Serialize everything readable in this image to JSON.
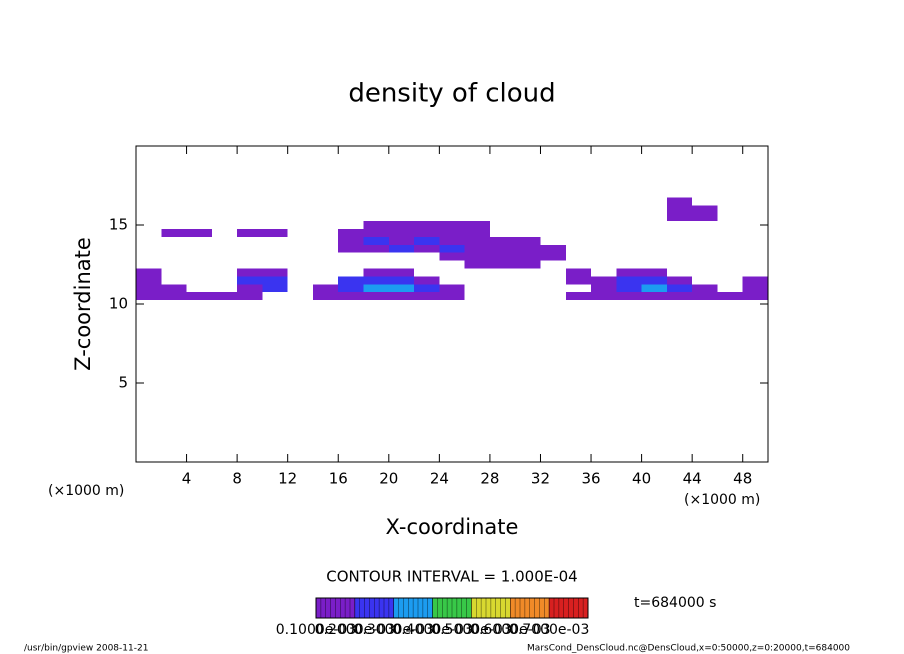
{
  "chart_data": {
    "type": "heatmap",
    "title": "density of cloud",
    "xlabel": "X-coordinate",
    "ylabel": "Z-coordinate",
    "x_unit_labels": [
      "(×1000 m)",
      "(×1000 m)"
    ],
    "contour_interval": "CONTOUR INTERVAL = 1.000E-04",
    "time_label": "t=684000 s",
    "footer_left": "/usr/bin/gpview   2008-11-21",
    "footer_right": "MarsCond_DensCloud.nc@DensCloud,x=0:50000,z=0:20000,t=684000",
    "xlim": [
      0,
      50
    ],
    "ylim": [
      0,
      20
    ],
    "xticks": [
      4,
      8,
      12,
      16,
      20,
      24,
      28,
      32,
      36,
      40,
      44,
      48
    ],
    "yticks": [
      5,
      10,
      15
    ],
    "x": [
      1,
      3,
      5,
      7,
      9,
      11,
      13,
      15,
      17,
      19,
      21,
      23,
      25,
      27,
      29,
      31,
      33,
      35,
      37,
      39,
      41,
      43,
      45,
      47,
      49
    ],
    "z": [
      10.5,
      11,
      11.5,
      12,
      12.5,
      13,
      13.5,
      14,
      14.5,
      15,
      15.5,
      16,
      16.5
    ],
    "values": [
      [
        0.00015,
        0.00015,
        0.00015,
        0.00015,
        0.00015,
        null,
        null,
        0.00015,
        0.00015,
        0.00015,
        0.00015,
        0.00015,
        0.00015,
        null,
        null,
        null,
        null,
        0.00015,
        0.00015,
        0.00015,
        0.00015,
        0.00015,
        0.00015,
        0.00015,
        0.00015
      ],
      [
        0.00015,
        0.00015,
        null,
        null,
        0.00015,
        0.00025,
        null,
        0.00015,
        0.00025,
        0.00032,
        0.00032,
        0.00025,
        0.00015,
        null,
        null,
        null,
        null,
        null,
        0.00015,
        0.00025,
        0.00032,
        0.00025,
        0.00015,
        null,
        0.00015
      ],
      [
        0.00015,
        null,
        null,
        null,
        0.00025,
        0.00025,
        null,
        null,
        0.00025,
        0.00025,
        0.00025,
        0.00015,
        null,
        null,
        null,
        null,
        null,
        0.00015,
        0.00015,
        0.00025,
        0.00025,
        0.00015,
        null,
        null,
        0.00015
      ],
      [
        0.00015,
        null,
        null,
        null,
        0.00015,
        0.00015,
        null,
        null,
        null,
        0.00015,
        0.00015,
        null,
        null,
        null,
        null,
        null,
        null,
        0.00015,
        null,
        0.00015,
        0.00015,
        null,
        null,
        null,
        null
      ],
      [
        null,
        null,
        null,
        null,
        null,
        null,
        null,
        null,
        null,
        null,
        null,
        null,
        null,
        0.00015,
        0.00015,
        0.00015,
        null,
        null,
        null,
        null,
        null,
        null,
        null,
        null,
        null
      ],
      [
        null,
        null,
        null,
        null,
        null,
        null,
        null,
        null,
        null,
        null,
        null,
        null,
        0.00015,
        0.00015,
        0.00015,
        0.00015,
        0.00015,
        null,
        null,
        null,
        null,
        null,
        null,
        null,
        null
      ],
      [
        null,
        null,
        null,
        null,
        null,
        null,
        null,
        null,
        0.00015,
        0.00015,
        0.00025,
        0.00015,
        0.00025,
        0.00015,
        0.00015,
        0.00015,
        0.00015,
        null,
        null,
        null,
        null,
        null,
        null,
        null,
        null
      ],
      [
        null,
        null,
        null,
        null,
        null,
        null,
        null,
        null,
        0.00015,
        0.00025,
        0.00015,
        0.00025,
        0.00015,
        0.00015,
        0.00015,
        0.00015,
        null,
        null,
        null,
        null,
        null,
        null,
        null,
        null,
        null
      ],
      [
        null,
        0.00015,
        0.00015,
        null,
        0.00015,
        0.00015,
        null,
        null,
        0.00015,
        0.00015,
        0.00015,
        0.00015,
        0.00015,
        0.00015,
        null,
        null,
        null,
        null,
        null,
        null,
        null,
        null,
        null,
        null,
        null
      ],
      [
        null,
        null,
        null,
        null,
        null,
        null,
        null,
        null,
        null,
        0.00015,
        0.00015,
        0.00015,
        0.00015,
        0.00015,
        null,
        null,
        null,
        null,
        null,
        null,
        null,
        null,
        null,
        null,
        null
      ],
      [
        null,
        null,
        null,
        null,
        null,
        null,
        null,
        null,
        null,
        null,
        null,
        null,
        null,
        null,
        null,
        null,
        null,
        null,
        null,
        null,
        null,
        0.00015,
        0.00015,
        null,
        null
      ],
      [
        null,
        null,
        null,
        null,
        null,
        null,
        null,
        null,
        null,
        null,
        null,
        null,
        null,
        null,
        null,
        null,
        null,
        null,
        null,
        null,
        null,
        0.00015,
        0.00015,
        null,
        null
      ],
      [
        null,
        null,
        null,
        null,
        null,
        null,
        null,
        null,
        null,
        null,
        null,
        null,
        null,
        null,
        null,
        null,
        null,
        null,
        null,
        null,
        null,
        0.00015,
        null,
        null,
        null
      ]
    ],
    "levels": [
      {
        "value": 0.0001,
        "label": "0.1000e-03"
      },
      {
        "value": 0.0002,
        "label": "0.2000e-03"
      },
      {
        "value": 0.0003,
        "label": "0.3000e-03"
      },
      {
        "value": 0.0004,
        "label": "0.4000e-03"
      },
      {
        "value": 0.0005,
        "label": "0.5000e-03"
      },
      {
        "value": 0.0006,
        "label": "0.6000e-03"
      },
      {
        "value": 0.0007,
        "label": "0.7000e-03"
      }
    ],
    "colors": [
      "#7a1ec8",
      "#3a34f0",
      "#1c9cf0",
      "#38c848",
      "#d8d830",
      "#f08a28",
      "#d82020"
    ]
  }
}
